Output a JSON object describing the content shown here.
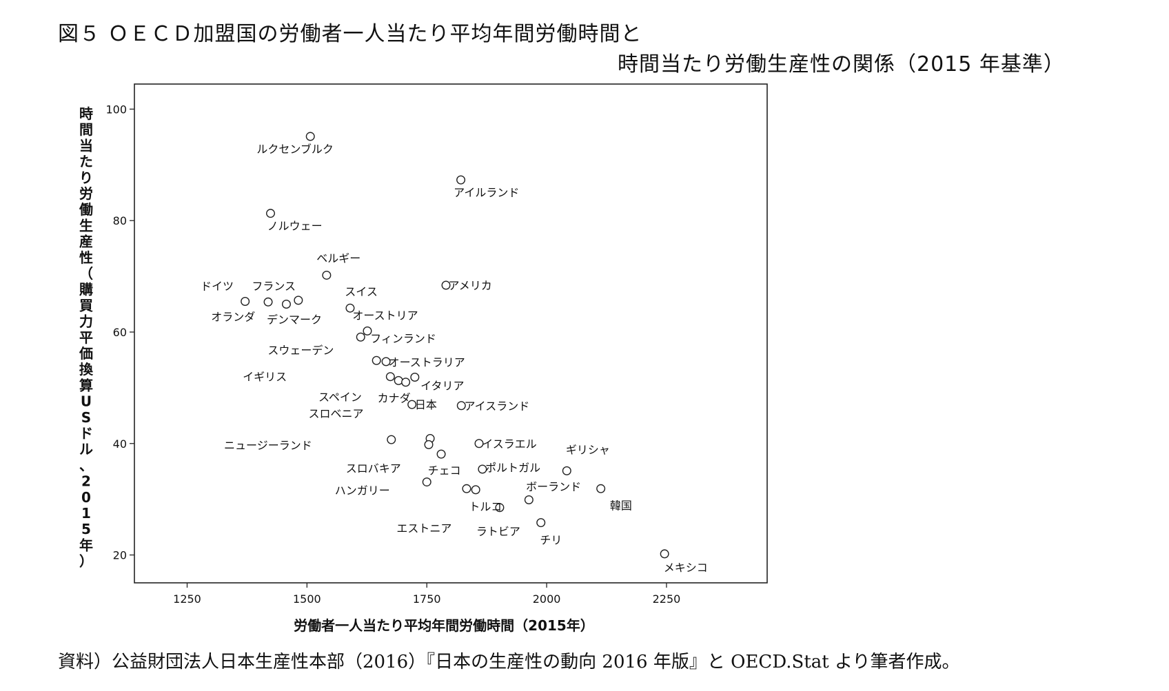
{
  "figure": {
    "title_line1": "図５ ＯＥＣＤ加盟国の労働者一人当たり平均年間労働時間と",
    "title_line2": "時間当たり労働生産性の関係（2015 年基準）",
    "source": "資料）公益財団法人日本生産性本部（2016）『日本の生産性の動向 2016 年版』と OECD.Stat より筆者作成。"
  },
  "chart_data": {
    "type": "scatter",
    "xlabel": "労働者一人当たり平均年間労働時間（2015年）",
    "ylabel": "時間当たり労働生産性（購買力平価換算USドル、2015年）",
    "xlim": [
      1140,
      2460
    ],
    "ylim": [
      15,
      104.5
    ],
    "xticks": [
      1250,
      1500,
      1750,
      2000,
      2250
    ],
    "yticks": [
      20,
      40,
      60,
      80,
      100
    ],
    "grid": false,
    "marker": "open-circle",
    "points": [
      {
        "x": 1507,
        "y": 95.1
      },
      {
        "x": 1821,
        "y": 87.3
      },
      {
        "x": 1424,
        "y": 81.3
      },
      {
        "x": 1541,
        "y": 70.2
      },
      {
        "x": 1790,
        "y": 68.4
      },
      {
        "x": 1371,
        "y": 65.5
      },
      {
        "x": 1419,
        "y": 65.4
      },
      {
        "x": 1457,
        "y": 65.0
      },
      {
        "x": 1482,
        "y": 65.7
      },
      {
        "x": 1590,
        "y": 64.3
      },
      {
        "x": 1626,
        "y": 60.2
      },
      {
        "x": 1612,
        "y": 59.1
      },
      {
        "x": 1645,
        "y": 54.9
      },
      {
        "x": 1665,
        "y": 54.7
      },
      {
        "x": 1674,
        "y": 52.0
      },
      {
        "x": 1691,
        "y": 51.3
      },
      {
        "x": 1706,
        "y": 51.0
      },
      {
        "x": 1725,
        "y": 51.9
      },
      {
        "x": 1719,
        "y": 47.0
      },
      {
        "x": 1822,
        "y": 46.8
      },
      {
        "x": 1676,
        "y": 40.7
      },
      {
        "x": 1757,
        "y": 40.9
      },
      {
        "x": 1754,
        "y": 39.8
      },
      {
        "x": 1780,
        "y": 38.1
      },
      {
        "x": 1859,
        "y": 40.0
      },
      {
        "x": 1866,
        "y": 35.4
      },
      {
        "x": 2042,
        "y": 35.1
      },
      {
        "x": 1750,
        "y": 33.1
      },
      {
        "x": 1833,
        "y": 31.9
      },
      {
        "x": 1852,
        "y": 31.7
      },
      {
        "x": 2113,
        "y": 31.9
      },
      {
        "x": 1963,
        "y": 29.9
      },
      {
        "x": 1902,
        "y": 28.5
      },
      {
        "x": 1988,
        "y": 25.8
      },
      {
        "x": 2246,
        "y": 20.2
      }
    ],
    "labels": [
      {
        "text": "ルクセンブルク",
        "x": 1395,
        "y": 92.9
      },
      {
        "text": "アイルランド",
        "x": 1806,
        "y": 85.1
      },
      {
        "text": "ノルウェー",
        "x": 1417,
        "y": 79.1
      },
      {
        "text": "ベルギー",
        "x": 1520,
        "y": 73.3
      },
      {
        "text": "アメリカ",
        "x": 1795,
        "y": 68.4
      },
      {
        "text": "ドイツ",
        "x": 1278,
        "y": 68.3
      },
      {
        "text": "フランス",
        "x": 1385,
        "y": 68.3
      },
      {
        "text": "スイス",
        "x": 1579,
        "y": 67.3
      },
      {
        "text": "オランダ",
        "x": 1300,
        "y": 62.8
      },
      {
        "text": "デンマーク",
        "x": 1416,
        "y": 62.3
      },
      {
        "text": "オーストリア",
        "x": 1595,
        "y": 63.0
      },
      {
        "text": "フィンランド",
        "x": 1632,
        "y": 58.9
      },
      {
        "text": "スウェーデン",
        "x": 1418,
        "y": 56.8
      },
      {
        "text": "オーストラリア",
        "x": 1670,
        "y": 54.6
      },
      {
        "text": "イギリス",
        "x": 1366,
        "y": 52.0
      },
      {
        "text": "イタリア",
        "x": 1737,
        "y": 50.4
      },
      {
        "text": "スペイン",
        "x": 1524,
        "y": 48.4
      },
      {
        "text": "カナダ",
        "x": 1647,
        "y": 48.2
      },
      {
        "text": "日本",
        "x": 1725,
        "y": 47.0
      },
      {
        "text": "アイスランド",
        "x": 1828,
        "y": 46.8
      },
      {
        "text": "スロベニア",
        "x": 1503,
        "y": 45.4
      },
      {
        "text": "ニュージーランド",
        "x": 1327,
        "y": 39.7
      },
      {
        "text": "イスラエル",
        "x": 1865,
        "y": 40.0
      },
      {
        "text": "ギリシャ",
        "x": 2040,
        "y": 38.9
      },
      {
        "text": "スロバキア",
        "x": 1581,
        "y": 35.6
      },
      {
        "text": "チェコ",
        "x": 1752,
        "y": 35.2
      },
      {
        "text": "ポルトガル",
        "x": 1872,
        "y": 35.7
      },
      {
        "text": "ボーランド",
        "x": 1957,
        "y": 32.3
      },
      {
        "text": "ハンガリー",
        "x": 1558,
        "y": 31.6
      },
      {
        "text": "トルコ",
        "x": 1838,
        "y": 28.7
      },
      {
        "text": "韓国",
        "x": 2132,
        "y": 28.9
      },
      {
        "text": "エストニア",
        "x": 1687,
        "y": 24.8
      },
      {
        "text": "ラトビア",
        "x": 1853,
        "y": 24.3
      },
      {
        "text": "チリ",
        "x": 1986,
        "y": 22.7
      },
      {
        "text": "メキシコ",
        "x": 2244,
        "y": 17.8
      }
    ]
  }
}
